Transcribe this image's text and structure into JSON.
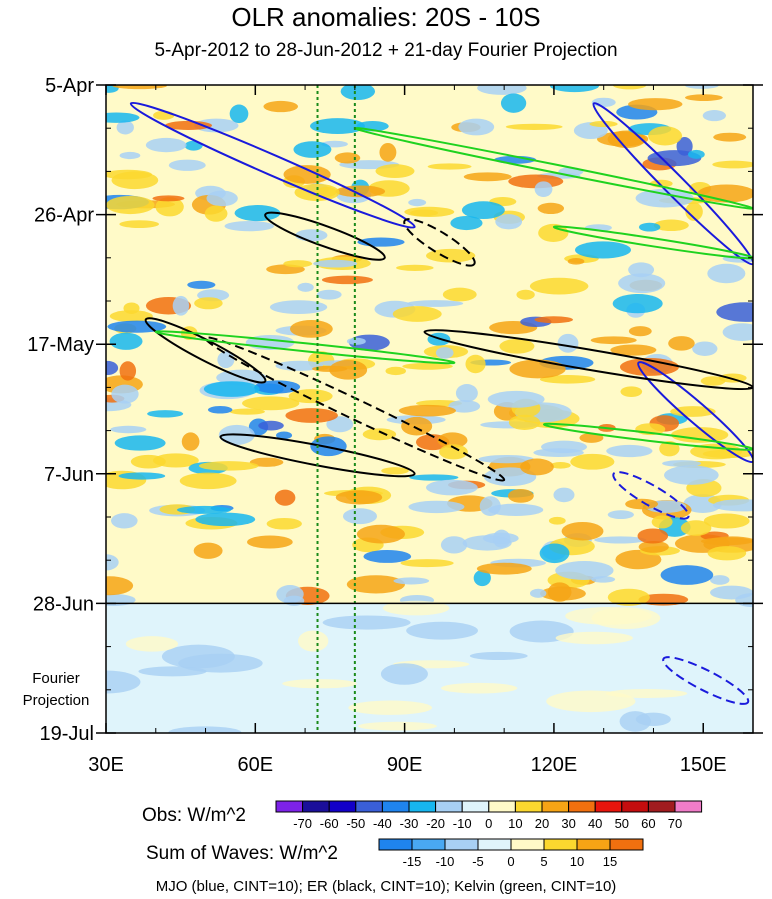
{
  "title": "OLR anomalies: 20S - 10S",
  "subtitle": "5-Apr-2012 to 28-Jun-2012 + 21-day Fourier Projection",
  "fourier_label_line1": "Fourier",
  "fourier_label_line2": "Projection",
  "footer": "MJO (blue, CINT=10); ER (black, CINT=10); Kelvin (green, CINT=10)",
  "obs_legend": {
    "label": "Obs: W/m^2",
    "ticks": [
      "-70",
      "-60",
      "-50",
      "-40",
      "-30",
      "-20",
      "-10",
      "0",
      "10",
      "20",
      "30",
      "40",
      "50",
      "60",
      "70"
    ],
    "colors": [
      "#7d22e8",
      "#1b0f9a",
      "#1200c8",
      "#3a5fd8",
      "#1f84ee",
      "#17b6ef",
      "#a8d0f4",
      "#dff4fb",
      "#fffac8",
      "#fbd82f",
      "#f6a415",
      "#f1700f",
      "#e8150c",
      "#c40d0e",
      "#a11c1f",
      "#f07cc8"
    ]
  },
  "waves_legend": {
    "label": "Sum of Waves: W/m^2",
    "ticks": [
      "-15",
      "-10",
      "-5",
      "0",
      "5",
      "10",
      "15"
    ],
    "colors": [
      "#1f84ee",
      "#49a8f2",
      "#a8d0f4",
      "#dff4fb",
      "#fffac8",
      "#fbd82f",
      "#f6a415",
      "#f1700f"
    ]
  },
  "chart_data": {
    "type": "heatmap",
    "title": "OLR anomalies: 20S - 10S",
    "subtitle": "5-Apr-2012 to 28-Jun-2012 + 21-day Fourier Projection",
    "x_axis": {
      "label": "",
      "range_degE": [
        30,
        160
      ],
      "ticks": [
        30,
        60,
        90,
        120,
        150
      ],
      "tick_labels": [
        "30E",
        "60E",
        "90E",
        "120E",
        "150E"
      ]
    },
    "y_axis": {
      "label": "",
      "range": [
        "5-Apr-2012",
        "19-Jul-2012"
      ],
      "ticks": [
        "5-Apr",
        "26-Apr",
        "17-May",
        "7-Jun",
        "28-Jun",
        "19-Jul"
      ],
      "reversed": true
    },
    "observation_end": "28-Jun",
    "reference_lines_lon": [
      72.5,
      80
    ],
    "features": [
      {
        "wave": "MJO",
        "color": "blue",
        "sign": "negative",
        "lon": [
          35,
          92
        ],
        "date": [
          "8-Apr",
          "28-Apr"
        ]
      },
      {
        "wave": "MJO",
        "color": "blue",
        "sign": "negative",
        "lon": [
          128,
          160
        ],
        "date": [
          "8-Apr",
          "4-May"
        ]
      },
      {
        "wave": "MJO",
        "color": "blue",
        "sign": "negative",
        "lon": [
          137,
          160
        ],
        "date": [
          "20-May",
          "5-Jun"
        ]
      },
      {
        "wave": "MJO",
        "color": "blue",
        "sign": "positive",
        "lon": [
          132,
          147
        ],
        "date": [
          "7-Jun",
          "14-Jun"
        ]
      },
      {
        "wave": "MJO",
        "color": "blue",
        "sign": "positive",
        "lon": [
          142,
          159
        ],
        "date": [
          "7-Jul",
          "14-Jul"
        ]
      },
      {
        "wave": "ER",
        "color": "black",
        "sign": "negative",
        "lon": [
          62,
          86
        ],
        "date": [
          "26-Apr",
          "3-May"
        ]
      },
      {
        "wave": "ER",
        "color": "black",
        "sign": "negative",
        "lon": [
          38,
          62
        ],
        "date": [
          "13-May",
          "23-May"
        ]
      },
      {
        "wave": "ER",
        "color": "black",
        "sign": "negative",
        "lon": [
          53,
          92
        ],
        "date": [
          "1-Jun",
          "7-Jun"
        ]
      },
      {
        "wave": "ER",
        "color": "black",
        "sign": "negative",
        "lon": [
          94,
          160
        ],
        "date": [
          "15-May",
          "24-May"
        ]
      },
      {
        "wave": "ER",
        "color": "black",
        "sign": "positive",
        "lon": [
          50,
          110
        ],
        "date": [
          "16-May",
          "8-Jun"
        ]
      },
      {
        "wave": "ER",
        "color": "black",
        "sign": "positive",
        "lon": [
          90,
          104
        ],
        "date": [
          "27-Apr",
          "4-May"
        ]
      },
      {
        "wave": "Kelvin",
        "color": "green",
        "sign": "negative",
        "lon": [
          40,
          100
        ],
        "date": [
          "15-May",
          "20-May"
        ]
      },
      {
        "wave": "Kelvin",
        "color": "green",
        "sign": "negative",
        "lon": [
          80,
          160
        ],
        "date": [
          "12-Apr",
          "25-Apr"
        ]
      },
      {
        "wave": "Kelvin",
        "color": "green",
        "sign": "negative",
        "lon": [
          120,
          160
        ],
        "date": [
          "28-Apr",
          "3-May"
        ]
      },
      {
        "wave": "Kelvin",
        "color": "green",
        "sign": "negative",
        "lon": [
          118,
          160
        ],
        "date": [
          "30-May",
          "3-Jun"
        ]
      }
    ]
  }
}
